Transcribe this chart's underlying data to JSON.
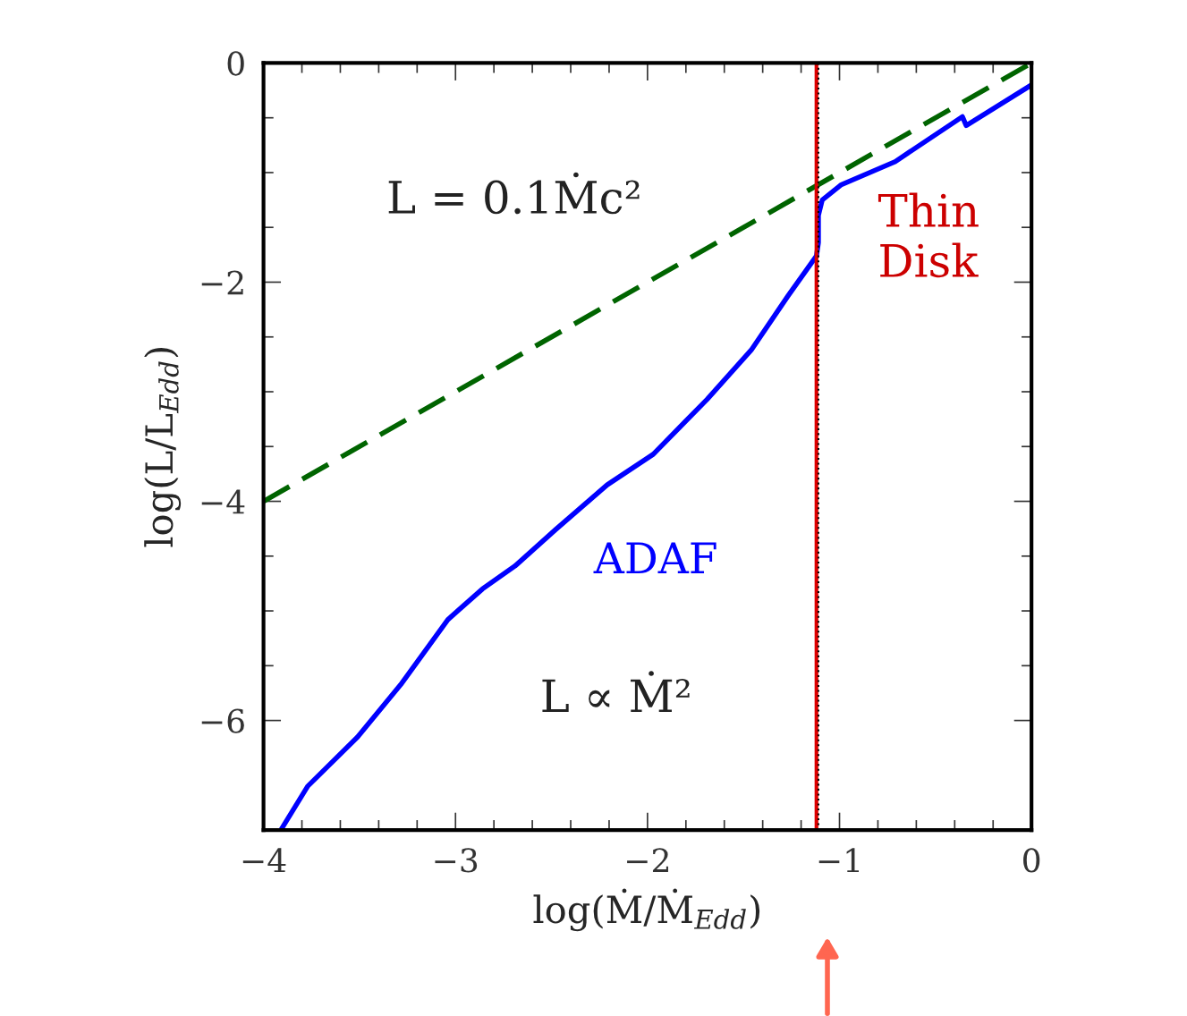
{
  "chart_data": {
    "type": "line",
    "xlabel": "log(Ṁ/Ṁ$_{Edd}$)",
    "ylabel": "log(L/L$_{Edd}$)",
    "series": [
      {
        "color": "#0000ff",
        "line_style": "solid",
        "x": [
          -3.91,
          -3.77,
          -3.51,
          -3.28,
          -3.04,
          -2.86,
          -2.69,
          -2.48,
          -2.21,
          -1.97,
          -1.69,
          -1.46,
          -1.27,
          -1.12,
          -1.11,
          -1.11,
          -1.09,
          -0.99,
          -0.71,
          -0.36,
          -0.34,
          0
        ],
        "values": [
          -7.0,
          -6.6,
          -6.15,
          -5.66,
          -5.08,
          -4.8,
          -4.59,
          -4.26,
          -3.85,
          -3.57,
          -3.07,
          -2.62,
          -2.13,
          -1.76,
          -1.64,
          -1.39,
          -1.25,
          -1.11,
          -0.9,
          -0.49,
          -0.57,
          -0.2
        ]
      },
      {
        "color": "#006400",
        "line_style": "dashed",
        "x": [
          -4,
          0
        ],
        "values": [
          -4,
          0
        ]
      }
    ],
    "ref_lines": [
      {
        "axis": "x",
        "value": -1.12,
        "color": "#dd0000",
        "line_style": "solid"
      },
      {
        "axis": "x",
        "value": -1.11,
        "color": "#000000",
        "line_style": "dotted"
      }
    ],
    "annotations": [
      "L = 0.1Ṁc²",
      "Thin\nDisk",
      "ADAF",
      "L ∝ Ṁ²"
    ],
    "xlim": [
      -4,
      0
    ],
    "ylim": [
      -7,
      0
    ],
    "xticks": [
      -4,
      {
        "value": -3.8,
        "label": null
      },
      {
        "value": -3.6,
        "label": null
      },
      {
        "value": -3.4,
        "label": null
      },
      {
        "value": -3.2,
        "label": null
      },
      -3,
      {
        "value": -2.8,
        "label": null
      },
      {
        "value": -2.6,
        "label": null
      },
      {
        "value": -2.4,
        "label": null
      },
      {
        "value": -2.2,
        "label": null
      },
      -2,
      {
        "value": -1.8,
        "label": null
      },
      {
        "value": -1.6,
        "label": null
      },
      {
        "value": -1.4,
        "label": null
      },
      {
        "value": -1.2,
        "label": null
      },
      -1,
      {
        "value": -0.8,
        "label": null
      },
      {
        "value": -0.6,
        "label": null
      },
      {
        "value": -0.4,
        "label": null
      },
      {
        "value": -0.2,
        "label": null
      },
      0
    ],
    "yticks": [
      {
        "value": -7,
        "label": null
      },
      -6,
      {
        "value": -5.5,
        "label": null
      },
      {
        "value": -5,
        "label": null
      },
      {
        "value": -4.5,
        "label": null
      },
      -4,
      {
        "value": -3.5,
        "label": null
      },
      {
        "value": -3,
        "label": null
      },
      {
        "value": -2.5,
        "label": null
      },
      -2,
      {
        "value": -1.5,
        "label": null
      },
      {
        "value": -1,
        "label": null
      },
      {
        "value": -0.5,
        "label": null
      },
      0
    ],
    "grid": false,
    "legend": false
  }
}
